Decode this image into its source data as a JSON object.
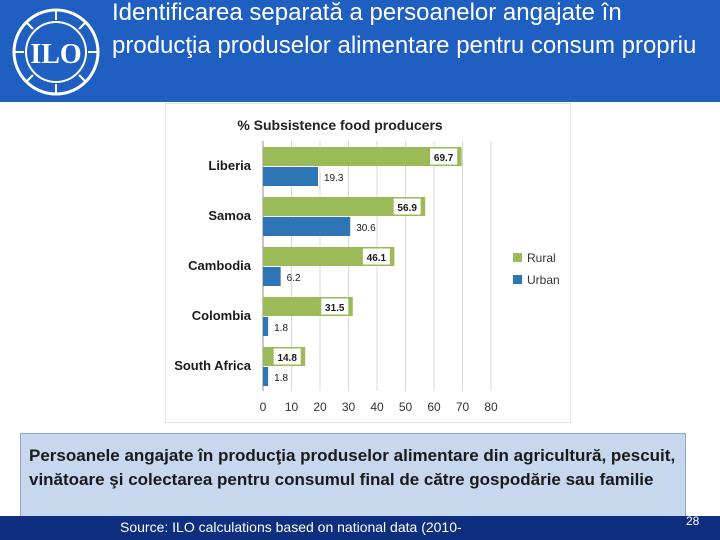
{
  "slide": {
    "title": "Identificarea separată a persoanelor angajate în producţia produselor alimentare pentru consum propriu",
    "definition": "Persoanele angajate în producţia produselor alimentare din agricultură, pescuit, vinătoare şi colectarea pentru consumul final de către gospodărie sau familie",
    "source": "Source: ILO calculations based on national data (2010-",
    "page_number": "28",
    "logo_text": "ILO"
  },
  "colors": {
    "header": "#1f5fc2",
    "footer": "#0e2f80",
    "rural": "#9bbb59",
    "urban": "#2e75b6",
    "definition_bg": "#c7d7ee"
  },
  "chart_data": {
    "type": "bar",
    "orientation": "horizontal",
    "title": "% Subsistence food producers",
    "categories": [
      "Liberia",
      "Samoa",
      "Cambodia",
      "Colombia",
      "South Africa"
    ],
    "series": [
      {
        "name": "Rural",
        "values": [
          69.7,
          56.9,
          46.1,
          31.5,
          14.8
        ]
      },
      {
        "name": "Urban",
        "values": [
          19.3,
          30.6,
          6.2,
          1.8,
          1.8
        ]
      }
    ],
    "data_labels": [
      [
        "69.7",
        "56.9",
        "46.1",
        "31.5",
        "14.8"
      ],
      [
        "19.3",
        "30.6",
        "6.2",
        "1.8",
        "1.8"
      ]
    ],
    "x_ticks": [
      "0",
      "10",
      "20",
      "30",
      "40",
      "50",
      "60",
      "70",
      "80"
    ],
    "xlim": [
      0,
      80
    ],
    "grid": true,
    "legend_position": "right"
  }
}
